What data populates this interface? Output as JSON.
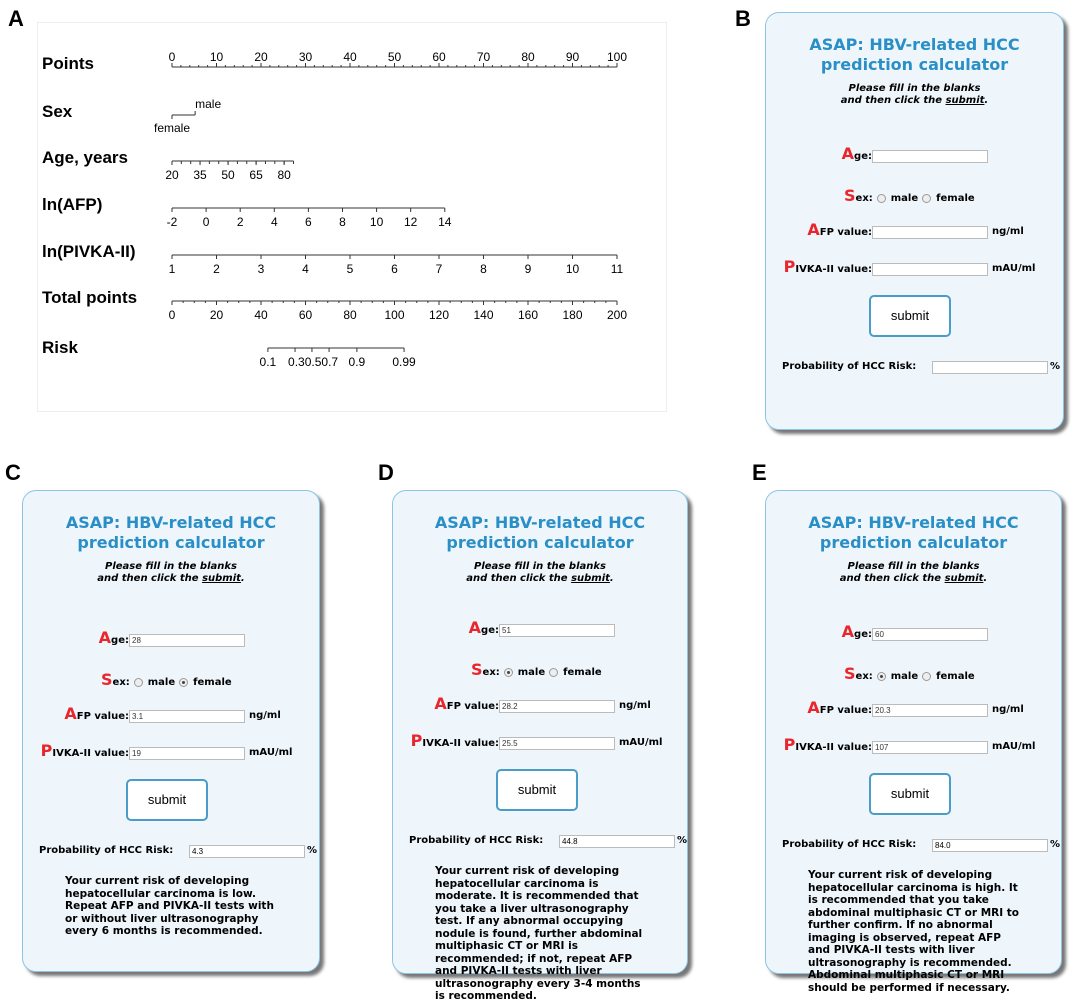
{
  "panel_labels": {
    "A": "A",
    "B": "B",
    "C": "C",
    "D": "D",
    "E": "E"
  },
  "chart_data": {
    "type": "nomogram",
    "points_scale": {
      "label": "Points",
      "range": [
        0,
        100
      ],
      "tick_labels": [
        0,
        10,
        20,
        30,
        40,
        50,
        60,
        70,
        80,
        90,
        100
      ],
      "minor_step": 2
    },
    "variables": [
      {
        "label": "Sex",
        "type": "categorical",
        "categories": [
          {
            "name": "female",
            "points": 0
          },
          {
            "name": "male",
            "points": 5.2
          }
        ]
      },
      {
        "label": "Age, years",
        "range": [
          20,
          85
        ],
        "points_range": [
          0,
          27.3
        ],
        "tick_labels": [
          20,
          35,
          50,
          65,
          80
        ],
        "minor_step": 5
      },
      {
        "label": "ln(AFP)",
        "range": [
          -2,
          14
        ],
        "points_range": [
          0,
          61.3
        ],
        "tick_labels": [
          -2,
          0,
          2,
          4,
          6,
          8,
          10,
          12,
          14
        ]
      },
      {
        "label": "ln(PIVKA-II)",
        "range": [
          1,
          11
        ],
        "points_range": [
          0,
          100
        ],
        "tick_labels": [
          1,
          2,
          3,
          4,
          5,
          6,
          7,
          8,
          9,
          10,
          11
        ]
      }
    ],
    "total_points": {
      "label": "Total points",
      "range": [
        0,
        200
      ],
      "tick_labels": [
        0,
        20,
        40,
        60,
        80,
        100,
        120,
        140,
        160,
        180,
        200
      ],
      "minor_step": 5
    },
    "risk": {
      "label": "Risk",
      "ticks": [
        {
          "value": "0.1",
          "total_points": 43.1
        },
        {
          "value": "0.3",
          "total_points": 55.3
        },
        {
          "value": "0.5",
          "total_points": 62.9
        },
        {
          "value": "0.7",
          "total_points": 70.6
        },
        {
          "value": "0.9",
          "total_points": 83.1
        },
        {
          "value": "0.99",
          "total_points": 104.3
        }
      ],
      "tick_label_text": [
        "0.1",
        "0.30.50.7",
        "",
        "",
        "0.9",
        "0.99"
      ]
    }
  },
  "calculator": {
    "title_line1": "ASAP: HBV-related HCC",
    "title_line2": "prediction calculator",
    "instr_line1": "Please fill in the blanks",
    "instr_line2_pre": "and then click the ",
    "instr_link": "submit",
    "instr_end": ".",
    "age_big": "A",
    "age_rest": "ge:",
    "sex_big": "S",
    "sex_rest": "ex:",
    "male": "male",
    "female": "female",
    "afp_big": "A",
    "afp_rest": "FP value:",
    "afp_unit": "ng/ml",
    "pivka_big": "P",
    "pivka_rest": "IVKA-II value:",
    "pivka_unit": "mAU/ml",
    "submit": "submit",
    "prob_label": "Probability of HCC Risk:",
    "pct": "%",
    "title_color": "#2a8fc6",
    "accent_color": "#e8262b"
  },
  "panels": {
    "B": {
      "age": "",
      "sex": "",
      "afp": "",
      "pivka": "",
      "probability": "",
      "message": ""
    },
    "C": {
      "age": "28",
      "sex": "female",
      "afp": "3.1",
      "pivka": "19",
      "probability": "4.3",
      "message": "Your current risk of developing hepatocellular carcinoma is low. Repeat AFP and PIVKA-II tests with or without liver ultrasonography every 6 months is recommended."
    },
    "D": {
      "age": "51",
      "sex": "male",
      "afp": "28.2",
      "pivka": "25.5",
      "probability": "44.8",
      "message": "Your current risk of developing hepatocellular carcinoma is moderate. It is recommended that you take a liver ultrasonography test. If any abnormal occupying nodule is found, further abdominal multiphasic CT or MRI is recommended; if not, repeat AFP and PIVKA-II tests with liver ultrasonography every 3-4 months is recommended."
    },
    "E": {
      "age": "60",
      "sex": "male",
      "afp": "20.3",
      "pivka": "107",
      "probability": "84.0",
      "message": "Your current risk of developing hepatocellular carcinoma is high. It is recommended that you take abdominal multiphasic CT or MRI to further confirm. If no abnormal imaging is observed, repeat AFP and PIVKA-II tests with liver ultrasonography is recommended. Abdominal multiphasic CT or MRI should be performed if necessary."
    }
  }
}
